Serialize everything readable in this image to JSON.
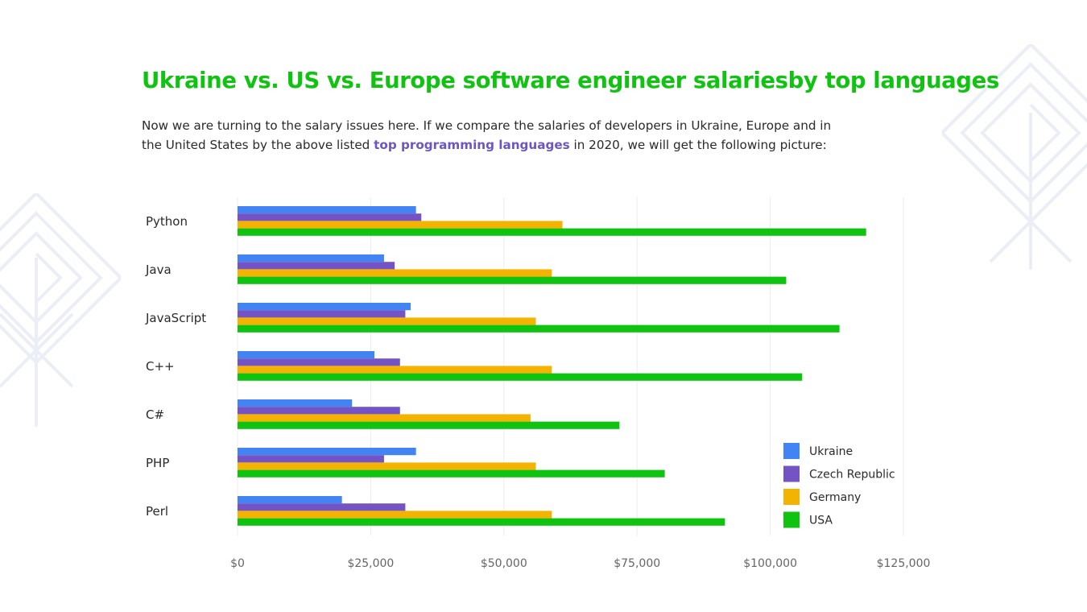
{
  "header": {
    "title": "Ukraine vs. US vs. Europe software engineer salariesby top languages",
    "intro_before": "Now we are turning to the salary issues here. If we compare the salaries of developers in Ukraine, Europe and in the United States by the above listed ",
    "intro_link": "top programming languages",
    "intro_after": " in 2020, we will get the following picture:"
  },
  "colors": {
    "title": "#11c311",
    "link": "#6d55c4",
    "text": "#2a2a2a",
    "grid": "#ececec",
    "axis_text": "#666666"
  },
  "chart_data": {
    "type": "bar",
    "orientation": "horizontal",
    "title": "",
    "xlabel": "",
    "ylabel": "",
    "xlim": [
      0,
      125000
    ],
    "x_ticks": [
      0,
      25000,
      50000,
      75000,
      100000,
      125000
    ],
    "x_tick_labels": [
      "$0",
      "$25,000",
      "$50,000",
      "$75,000",
      "$100,000",
      "$125,000"
    ],
    "grid": "vertical",
    "legend_position": "bottom-right",
    "categories": [
      "Python",
      "Java",
      "JavaScript",
      "C++",
      "C#",
      "PHP",
      "Perl"
    ],
    "series": [
      {
        "name": "Ukraine",
        "color": "#4284f4",
        "values": [
          33500,
          27500,
          32500,
          25700,
          21500,
          33500,
          19600
        ]
      },
      {
        "name": "Czech Republic",
        "color": "#7454c4",
        "values": [
          34500,
          29500,
          31500,
          30500,
          30500,
          27500,
          31500
        ]
      },
      {
        "name": "Germany",
        "color": "#f5b301",
        "values": [
          61000,
          59000,
          56000,
          59000,
          55000,
          56000,
          59000
        ]
      },
      {
        "name": "USA",
        "color": "#11c311",
        "values": [
          118000,
          103000,
          113000,
          106000,
          71700,
          80200,
          91500
        ]
      }
    ]
  }
}
